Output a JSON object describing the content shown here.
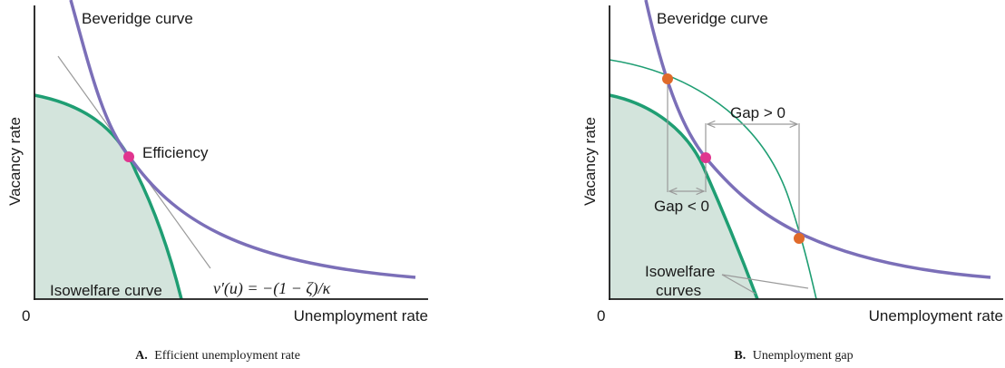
{
  "colors": {
    "beveridge": "#7b6fb8",
    "isowelfare": "#1f9e73",
    "isowelfare_fill": "#d3e4dc",
    "efficiency_point": "#e0358f",
    "gap_point": "#e06a2a",
    "tangent": "#9a9a9a",
    "axis": "#1a1a1a"
  },
  "panel_a": {
    "y_axis_label": "Vacancy rate",
    "x_axis_label": "Unemployment rate",
    "origin_label": "0",
    "beveridge_label": "Beveridge curve",
    "efficiency_label": "Efficiency",
    "isowelfare_label": "Isowelfare curve",
    "tangent_formula": "v′(u) = −(1 − ζ)/κ",
    "caption_letter": "A.",
    "caption_text": "Efficient unemployment rate"
  },
  "panel_b": {
    "y_axis_label": "Vacancy rate",
    "x_axis_label": "Unemployment rate",
    "origin_label": "0",
    "beveridge_label": "Beveridge curve",
    "gap_positive_label": "Gap > 0",
    "gap_negative_label": "Gap < 0",
    "isowelfare_label_line1": "Isowelfare",
    "isowelfare_label_line2": "curves",
    "caption_letter": "B.",
    "caption_text": "Unemployment gap"
  }
}
